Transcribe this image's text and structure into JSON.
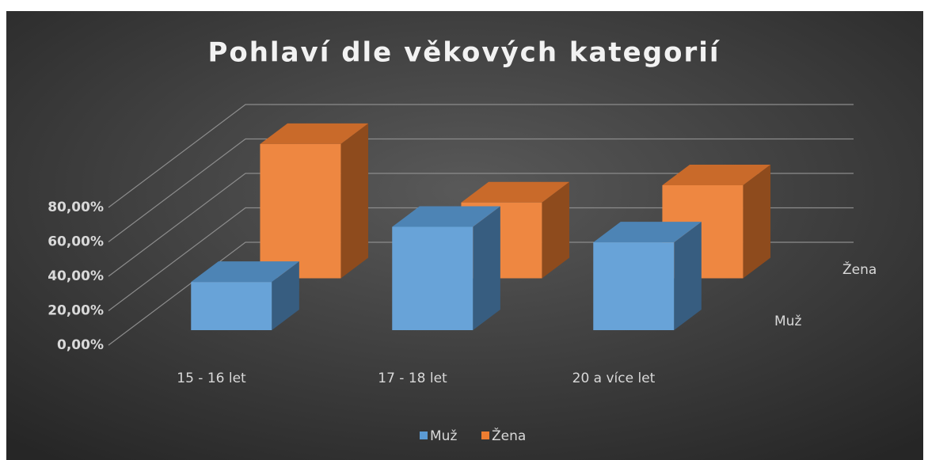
{
  "chart_data": {
    "type": "bar3d",
    "title": "Pohlaví dle věkových kategorií",
    "categories": [
      "15 - 16 let",
      "17 - 18 let",
      "20 a více let"
    ],
    "series": [
      {
        "name": "Muž",
        "color": "#5b9bd5",
        "values": [
          28,
          60,
          51
        ]
      },
      {
        "name": "Žena",
        "color": "#ed7d31",
        "values": [
          78,
          44,
          54
        ]
      }
    ],
    "ylim": [
      0,
      80
    ],
    "yticks": [
      {
        "value": 0,
        "label": "0,00%"
      },
      {
        "value": 20,
        "label": "20,00%"
      },
      {
        "value": 40,
        "label": "40,00%"
      },
      {
        "value": 60,
        "label": "60,00%"
      },
      {
        "value": 80,
        "label": "80,00%"
      }
    ],
    "grid": true,
    "legend": "bottom"
  }
}
